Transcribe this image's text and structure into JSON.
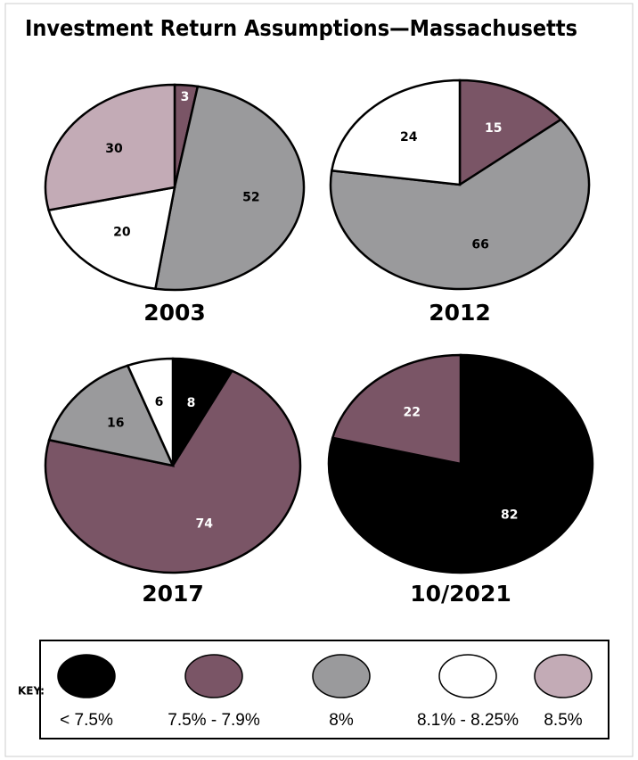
{
  "title": "Investment Return Assumptions—Massachusetts",
  "key": {
    "title": "KEY:",
    "labels": [
      "< 7.5%",
      "7.5% - 7.9%",
      "8%",
      "8.1% - 8.25%",
      "8.5%"
    ],
    "colors": [
      "#000000",
      "#7a5566",
      "#9a9a9c",
      "#ffffff",
      "#c3abb6"
    ]
  },
  "chart_data": [
    {
      "type": "pie",
      "title": "2003",
      "values": [
        3,
        52,
        20,
        30
      ],
      "colors": [
        "#7a5566",
        "#9a9a9c",
        "#ffffff",
        "#c3abb6"
      ]
    },
    {
      "type": "pie",
      "title": "2012",
      "values": [
        15,
        66,
        24
      ],
      "colors": [
        "#7a5566",
        "#9a9a9c",
        "#ffffff"
      ]
    },
    {
      "type": "pie",
      "title": "2017",
      "values": [
        8,
        74,
        16,
        6
      ],
      "colors": [
        "#000000",
        "#7a5566",
        "#9a9a9c",
        "#ffffff"
      ]
    },
    {
      "type": "pie",
      "title": "10/2021",
      "values": [
        82,
        22
      ],
      "colors": [
        "#000000",
        "#7a5566"
      ]
    }
  ]
}
